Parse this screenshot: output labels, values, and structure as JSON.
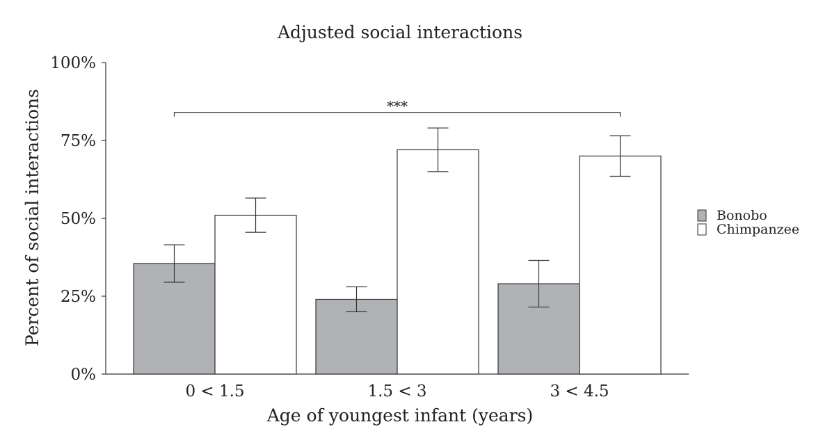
{
  "chart_data": {
    "type": "bar",
    "title": "Adjusted social interactions",
    "xlabel": "Age of youngest infant (years)",
    "ylabel": "Percent of social interactions",
    "categories": [
      "0 < 1.5",
      "1.5 < 3",
      "3 < 4.5"
    ],
    "ylim": [
      0,
      100
    ],
    "yticks": [
      0,
      25,
      50,
      75,
      100
    ],
    "ytick_labels": [
      "0%",
      "25%",
      "50%",
      "75%",
      "100%"
    ],
    "series": [
      {
        "name": "Bonobo",
        "color": "#b1b2b5",
        "values": [
          35.5,
          24,
          29
        ],
        "error_low": [
          29.5,
          20,
          21.5
        ],
        "error_high": [
          41.5,
          28,
          36.5
        ]
      },
      {
        "name": "Chimpanzee",
        "color": "#ffffff",
        "values": [
          51,
          72,
          70
        ],
        "error_low": [
          45.5,
          65,
          63.5
        ],
        "error_high": [
          56.5,
          79,
          76.5
        ]
      }
    ],
    "significance": {
      "label": "***",
      "from_category": 0,
      "to_category": 2,
      "y": 84
    },
    "legend_position": "right",
    "grid": false
  }
}
